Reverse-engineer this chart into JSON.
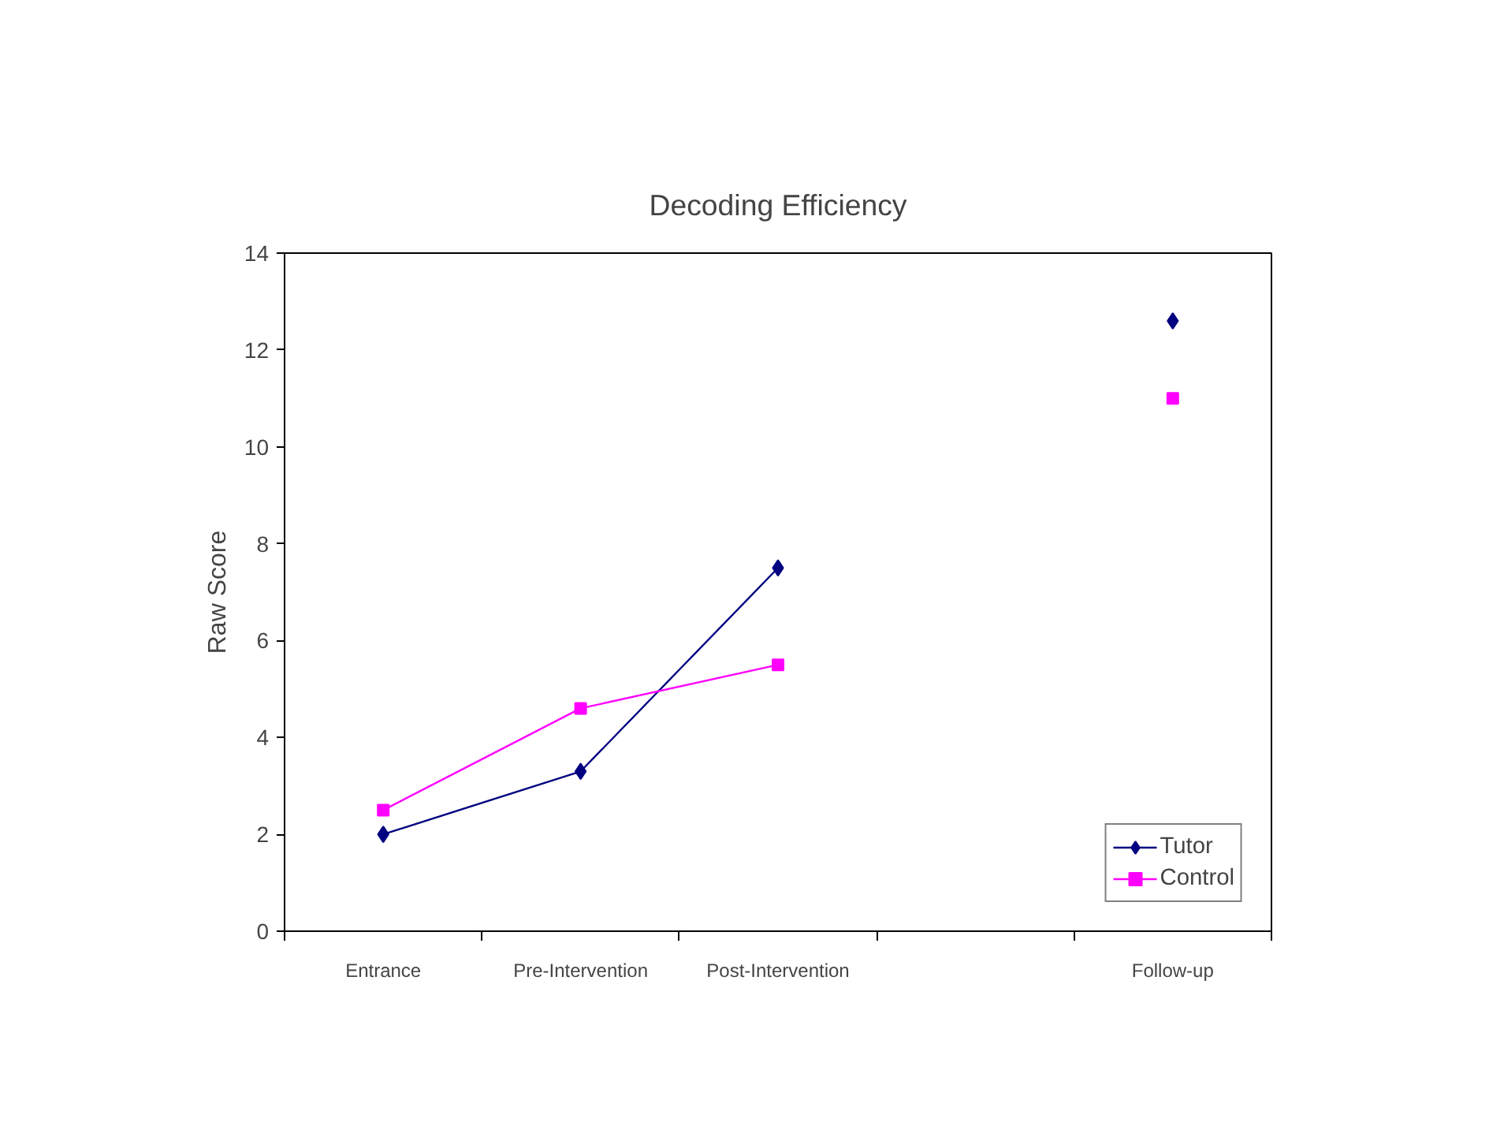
{
  "chart_data": {
    "type": "line",
    "title": "Decoding Efficiency",
    "ylabel": "Raw Score",
    "categories": [
      "Entrance",
      "Pre-Intervention",
      "Post-Intervention",
      null,
      "Follow-up"
    ],
    "series": [
      {
        "name": "Tutor",
        "color": "#000080",
        "marker": "diamond",
        "values": [
          2,
          3.3,
          7.5,
          null,
          12.6
        ]
      },
      {
        "name": "Control",
        "color": "#ff00ff",
        "marker": "square",
        "values": [
          2.5,
          4.6,
          5.5,
          null,
          11.0
        ]
      }
    ],
    "ylim": [
      0,
      14
    ],
    "yticks": [
      0,
      2,
      4,
      6,
      8,
      10,
      12,
      14
    ],
    "grid": false,
    "legend": "bottom right",
    "line_style": "solid"
  }
}
